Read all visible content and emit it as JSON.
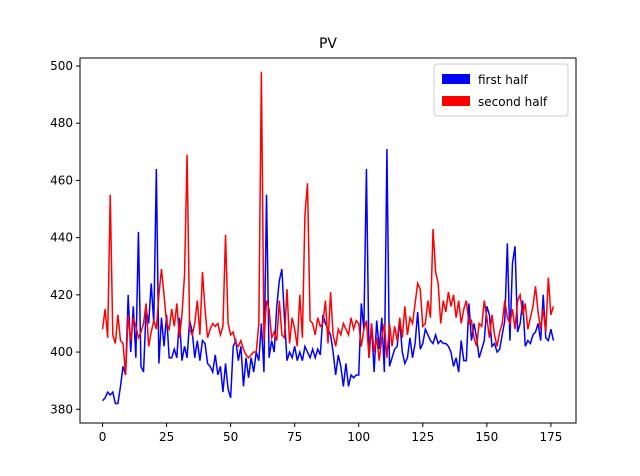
{
  "chart_data": {
    "type": "line",
    "title": "PV",
    "x": [
      0,
      1,
      2,
      3,
      4,
      5,
      6,
      7,
      8,
      9,
      10,
      11,
      12,
      13,
      14,
      15,
      16,
      17,
      18,
      19,
      20,
      21,
      22,
      23,
      24,
      25,
      26,
      27,
      28,
      29,
      30,
      31,
      32,
      33,
      34,
      35,
      36,
      37,
      38,
      39,
      40,
      41,
      42,
      43,
      44,
      45,
      46,
      47,
      48,
      49,
      50,
      51,
      52,
      53,
      54,
      55,
      56,
      57,
      58,
      59,
      60,
      61,
      62,
      63,
      64,
      65,
      66,
      67,
      68,
      69,
      70,
      71,
      72,
      73,
      74,
      75,
      76,
      77,
      78,
      79,
      80,
      81,
      82,
      83,
      84,
      85,
      86,
      87,
      88,
      89,
      90,
      91,
      92,
      93,
      94,
      95,
      96,
      97,
      98,
      99,
      100,
      101,
      102,
      103,
      104,
      105,
      106,
      107,
      108,
      109,
      110,
      111,
      112,
      113,
      114,
      115,
      116,
      117,
      118,
      119,
      120,
      121,
      122,
      123,
      124,
      125,
      126,
      127,
      128,
      129,
      130,
      131,
      132,
      133,
      134,
      135,
      136,
      137,
      138,
      139,
      140,
      141,
      142,
      143,
      144,
      145,
      146,
      147,
      148,
      149,
      150,
      151,
      152,
      153,
      154,
      155,
      156,
      157,
      158,
      159,
      160,
      161,
      162,
      163,
      164,
      165,
      166,
      167,
      168,
      169,
      170,
      171,
      172,
      173,
      174,
      175,
      176
    ],
    "series": [
      {
        "name": "first half",
        "color": "#0000ff",
        "values": [
          383,
          384,
          386,
          385,
          386,
          382,
          382,
          388,
          395,
          392,
          420,
          400,
          416,
          398,
          442,
          395,
          393,
          415,
          410,
          424,
          410,
          464,
          396,
          412,
          402,
          413,
          398,
          398,
          401,
          398,
          412,
          397,
          402,
          398,
          411,
          407,
          398,
          404,
          397,
          404,
          403,
          396,
          395,
          393,
          399,
          392,
          395,
          386,
          396,
          387,
          384,
          402,
          404,
          397,
          402,
          388,
          398,
          391,
          398,
          393,
          400,
          397,
          410,
          393,
          455,
          398,
          404,
          400,
          416,
          425,
          429,
          412,
          397,
          400,
          398,
          402,
          397,
          400,
          397,
          402,
          400,
          398,
          401,
          398,
          401,
          399,
          413,
          410,
          408,
          406,
          400,
          392,
          399,
          395,
          388,
          396,
          388,
          392,
          391,
          392,
          392,
          417,
          408,
          464,
          398,
          410,
          393,
          411,
          401,
          412,
          393,
          471,
          395,
          398,
          401,
          402,
          411,
          400,
          396,
          398,
          405,
          398,
          403,
          414,
          401,
          403,
          408,
          406,
          404,
          403,
          406,
          403,
          404,
          403,
          403,
          402,
          400,
          395,
          398,
          393,
          404,
          397,
          397,
          417,
          404,
          410,
          405,
          398,
          401,
          404,
          416,
          413,
          402,
          403,
          400,
          401,
          406,
          411,
          438,
          404,
          431,
          437,
          407,
          410,
          418,
          402,
          404,
          403,
          406,
          407,
          410,
          404,
          420,
          405,
          404,
          408,
          404
        ]
      },
      {
        "name": "second half",
        "color": "#ff0000",
        "values": [
          408,
          415,
          405,
          455,
          406,
          403,
          413,
          404,
          403,
          392,
          413,
          404,
          412,
          409,
          405,
          407,
          410,
          417,
          402,
          407,
          411,
          408,
          420,
          429,
          420,
          410,
          408,
          415,
          409,
          417,
          405,
          413,
          427,
          469,
          408,
          406,
          410,
          418,
          406,
          428,
          415,
          405,
          408,
          410,
          409,
          410,
          406,
          409,
          441,
          410,
          406,
          407,
          403,
          402,
          404,
          401,
          399,
          398,
          399,
          400,
          400,
          410,
          498,
          404,
          418,
          415,
          405,
          407,
          404,
          418,
          406,
          405,
          422,
          403,
          412,
          408,
          402,
          420,
          405,
          448,
          459,
          411,
          410,
          406,
          412,
          409,
          410,
          418,
          403,
          421,
          406,
          402,
          408,
          406,
          410,
          408,
          406,
          412,
          408,
          411,
          410,
          402,
          408,
          411,
          398,
          410,
          400,
          405,
          397,
          405,
          410,
          398,
          410,
          402,
          409,
          404,
          412,
          405,
          416,
          406,
          412,
          410,
          417,
          424,
          422,
          409,
          410,
          418,
          412,
          443,
          428,
          424,
          410,
          418,
          414,
          421,
          416,
          420,
          412,
          418,
          410,
          415,
          418,
          410,
          411,
          405,
          402,
          410,
          409,
          418,
          412,
          405,
          413,
          406,
          402,
          407,
          410,
          418,
          412,
          410,
          415,
          408,
          418,
          420,
          413,
          417,
          408,
          412,
          416,
          423,
          414,
          408,
          415,
          407,
          426,
          413,
          416
        ]
      }
    ],
    "xlim": [
      -8.8,
      184.8
    ],
    "ylim": [
      375.2,
      502.8
    ],
    "xticks": [
      0,
      25,
      50,
      75,
      100,
      125,
      150,
      175
    ],
    "yticks": [
      380,
      400,
      420,
      440,
      460,
      480,
      500
    ],
    "legend": "upper right"
  }
}
